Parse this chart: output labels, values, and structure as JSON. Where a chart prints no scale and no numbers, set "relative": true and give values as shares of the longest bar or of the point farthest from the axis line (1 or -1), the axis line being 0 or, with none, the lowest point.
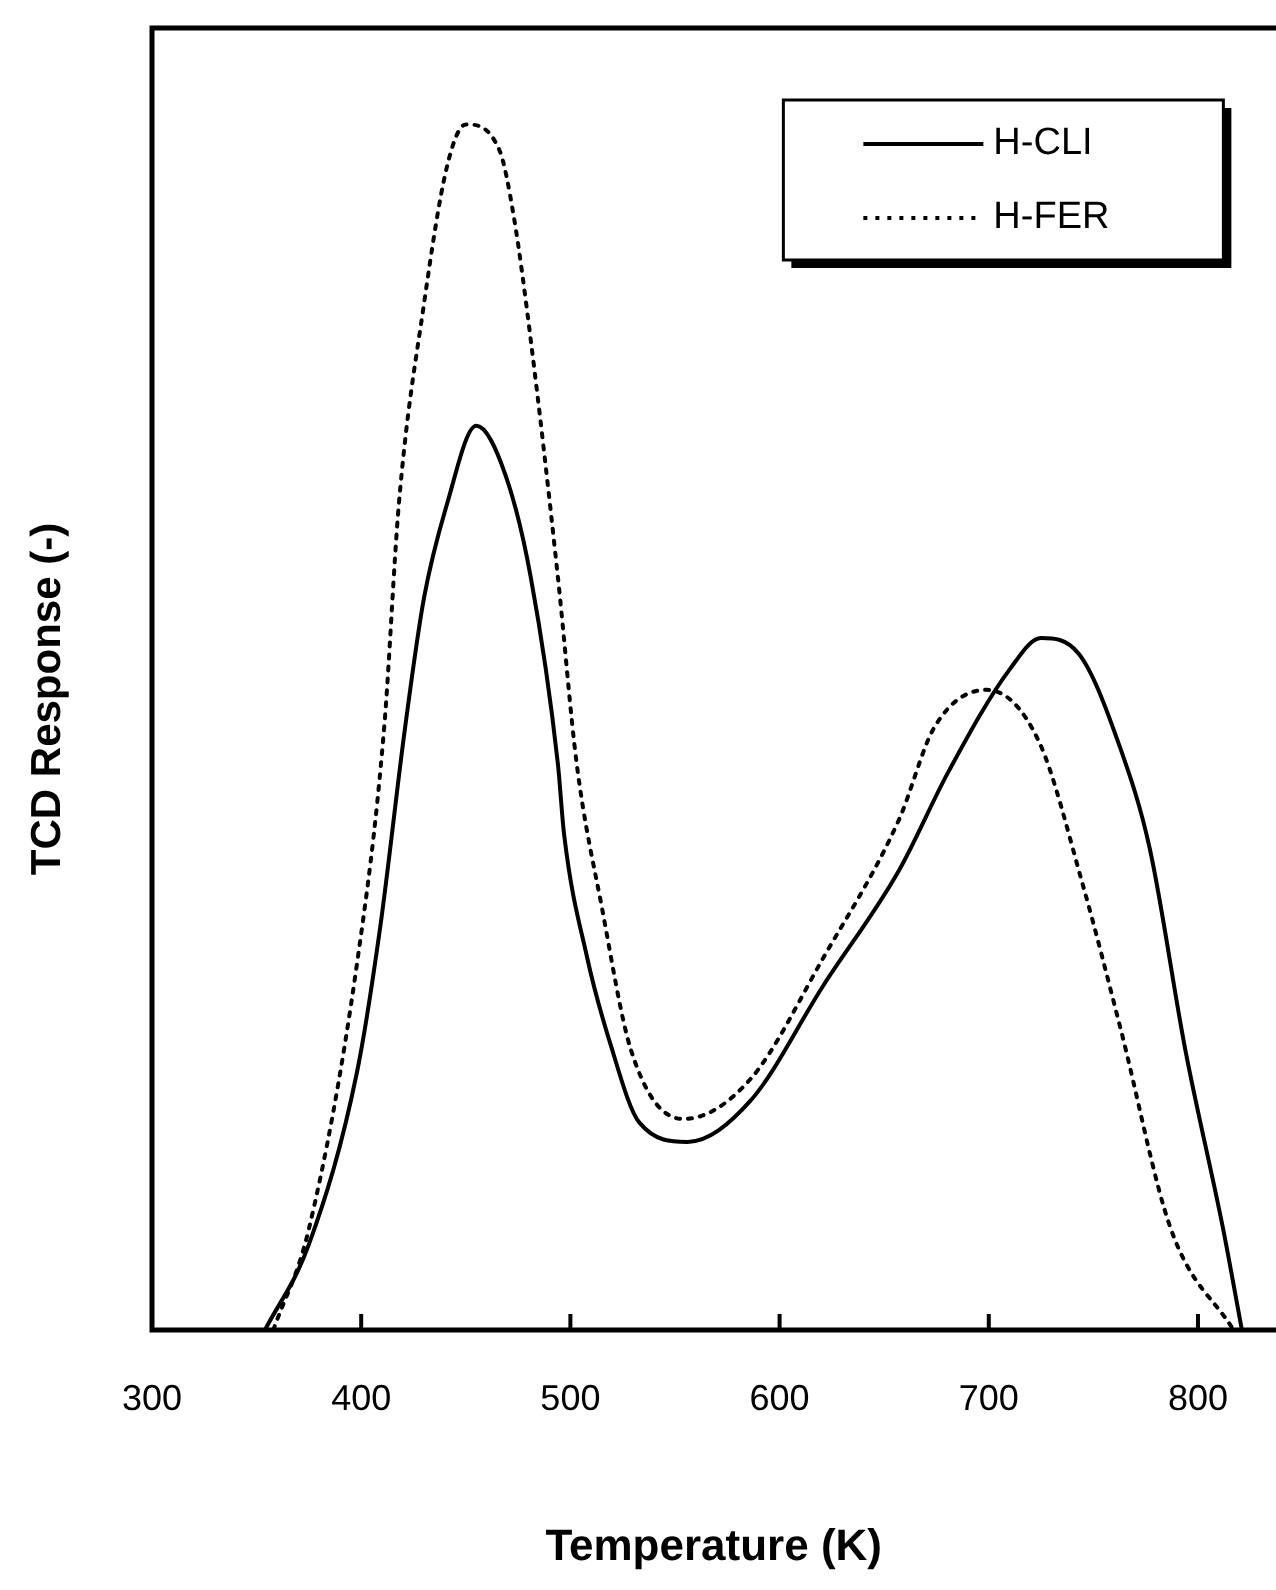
{
  "chart_data": {
    "type": "line",
    "relative": true,
    "xlabel": "Temperature (K)",
    "ylabel": "TCD Response (-)",
    "xlim": [
      300,
      837
    ],
    "xticks": [
      300,
      400,
      500,
      600,
      700,
      800
    ],
    "legend": "top right",
    "marker": "none",
    "grid": false,
    "series": [
      {
        "name": "H-CLI",
        "color": "#000000",
        "line_style": "solid",
        "x": [
          354,
          375,
          398,
          409,
          421,
          430,
          441,
          455,
          469,
          481,
          494,
          497,
          508,
          519,
          533,
          556,
          586,
          621,
          657,
          681,
          710,
          725,
          743,
          763,
          777,
          794,
          812,
          821
        ],
        "values": [
          0,
          0.071,
          0.214,
          0.333,
          0.5,
          0.607,
          0.685,
          0.75,
          0.709,
          0.625,
          0.47,
          0.411,
          0.309,
          0.238,
          0.172,
          0.156,
          0.19,
          0.286,
          0.381,
          0.464,
          0.548,
          0.574,
          0.561,
          0.482,
          0.399,
          0.232,
          0.084,
          0
        ]
      },
      {
        "name": "H-FER",
        "color": "#000000",
        "line_style": "dotted",
        "x": [
          358,
          375,
          398,
          411,
          418,
          430,
          441,
          450,
          466,
          473,
          481,
          494,
          503,
          515,
          529,
          554,
          586,
          621,
          657,
          674,
          699,
          724,
          745,
          763,
          787,
          817
        ],
        "values": [
          0,
          0.084,
          0.304,
          0.5,
          0.685,
          0.851,
          0.965,
          1,
          0.979,
          0.923,
          0.822,
          0.625,
          0.47,
          0.351,
          0.232,
          0.175,
          0.208,
          0.309,
          0.423,
          0.5,
          0.531,
          0.488,
          0.369,
          0.25,
          0.084,
          0
        ]
      }
    ]
  }
}
